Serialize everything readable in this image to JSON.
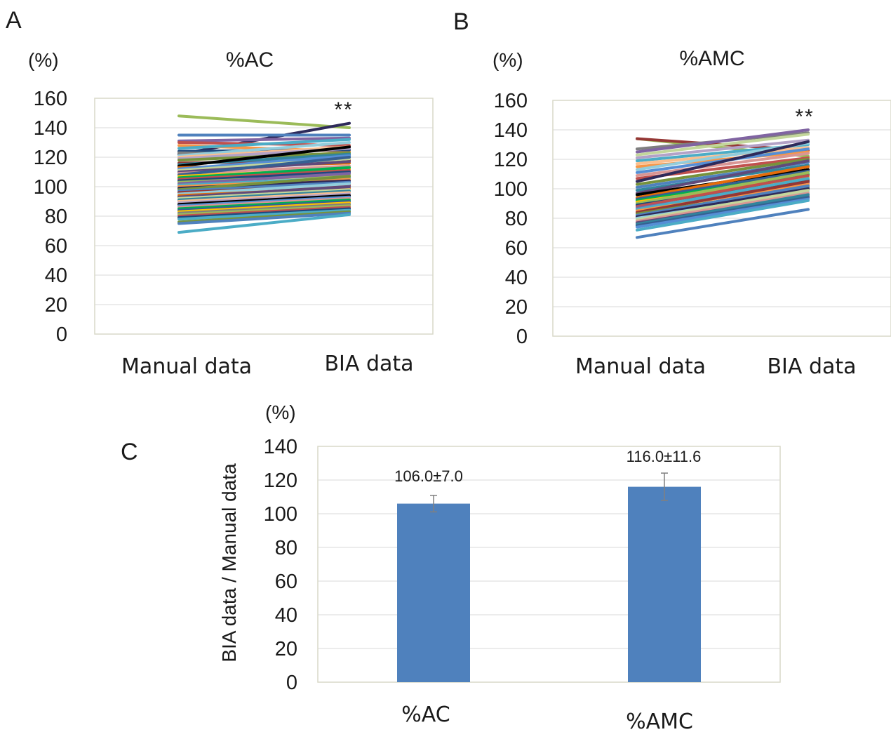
{
  "panels": {
    "A": {
      "letter": "A",
      "unit": "(%)",
      "title": "%AC",
      "significance": "**",
      "categories": [
        "Manual data",
        "BIA data"
      ],
      "y_ticks": [
        "0",
        "20",
        "40",
        "60",
        "80",
        "100",
        "120",
        "140",
        "160"
      ]
    },
    "B": {
      "letter": "B",
      "unit": "(%)",
      "title": "%AMC",
      "significance": "**",
      "categories": [
        "Manual data",
        "BIA data"
      ],
      "y_ticks": [
        "0",
        "20",
        "40",
        "60",
        "80",
        "100",
        "120",
        "140",
        "160"
      ]
    },
    "C": {
      "letter": "C",
      "unit": "(%)",
      "ylabel": "BIA data / Manual data",
      "categories": [
        "%AC",
        "%AMC"
      ],
      "bar_labels": [
        "106.0±7.0",
        "116.0±11.6"
      ],
      "y_ticks": [
        "0",
        "20",
        "40",
        "60",
        "80",
        "100",
        "120",
        "140"
      ]
    }
  },
  "chart_data": [
    {
      "type": "line",
      "title": "%AC",
      "ylabel": "(%)",
      "ylim": [
        0,
        160
      ],
      "grid": true,
      "categories": [
        "Manual data",
        "BIA data"
      ],
      "series": [
        {
          "color": "#9bbb59",
          "values": [
            148,
            140
          ]
        },
        {
          "color": "#2e2a5a",
          "values": [
            122,
            143
          ]
        },
        {
          "color": "#4f81bd",
          "values": [
            135,
            135
          ]
        },
        {
          "color": "#8064a2",
          "values": [
            131,
            133
          ]
        },
        {
          "color": "#c0504d",
          "values": [
            130,
            128
          ]
        },
        {
          "color": "#f79646",
          "values": [
            128,
            124
          ]
        },
        {
          "color": "#4bacc6",
          "values": [
            126,
            132
          ]
        },
        {
          "color": "#1f497d",
          "values": [
            124,
            125
          ]
        },
        {
          "color": "#7f7f7f",
          "values": [
            123,
            121
          ]
        },
        {
          "color": "#92cddc",
          "values": [
            121,
            130
          ]
        },
        {
          "color": "#fabf8f",
          "values": [
            120,
            127
          ]
        },
        {
          "color": "#b3a2c7",
          "values": [
            119,
            126
          ]
        },
        {
          "color": "#76923c",
          "values": [
            118,
            123
          ]
        },
        {
          "color": "#953735",
          "values": [
            116,
            118
          ]
        },
        {
          "color": "#31859c",
          "values": [
            115,
            122
          ]
        },
        {
          "color": "#000000",
          "values": [
            114,
            127
          ]
        },
        {
          "color": "#e46c0a",
          "values": [
            113,
            116
          ]
        },
        {
          "color": "#558ed5",
          "values": [
            112,
            121
          ]
        },
        {
          "color": "#c3d69b",
          "values": [
            111,
            119
          ]
        },
        {
          "color": "#604a7b",
          "values": [
            110,
            117
          ]
        },
        {
          "color": "#d99694",
          "values": [
            109,
            114
          ]
        },
        {
          "color": "#366092",
          "values": [
            108,
            120
          ]
        },
        {
          "color": "#ffc000",
          "values": [
            107,
            112
          ]
        },
        {
          "color": "#00b050",
          "values": [
            106,
            113
          ]
        },
        {
          "color": "#c0504d",
          "values": [
            105,
            111
          ]
        },
        {
          "color": "#1f497d",
          "values": [
            104,
            110
          ]
        },
        {
          "color": "#9bbb59",
          "values": [
            103,
            108
          ]
        },
        {
          "color": "#8064a2",
          "values": [
            102,
            109
          ]
        },
        {
          "color": "#4bacc6",
          "values": [
            101,
            106
          ]
        },
        {
          "color": "#f79646",
          "values": [
            100,
            105
          ]
        },
        {
          "color": "#2e2a5a",
          "values": [
            99,
            104
          ]
        },
        {
          "color": "#76923c",
          "values": [
            98,
            107
          ]
        },
        {
          "color": "#4f81bd",
          "values": [
            97,
            103
          ]
        },
        {
          "color": "#953735",
          "values": [
            96,
            101
          ]
        },
        {
          "color": "#92cddc",
          "values": [
            95,
            102
          ]
        },
        {
          "color": "#e46c0a",
          "values": [
            94,
            99
          ]
        },
        {
          "color": "#604a7b",
          "values": [
            93,
            100
          ]
        },
        {
          "color": "#c3d69b",
          "values": [
            92,
            98
          ]
        },
        {
          "color": "#31859c",
          "values": [
            91,
            97
          ]
        },
        {
          "color": "#fabf8f",
          "values": [
            90,
            96
          ]
        },
        {
          "color": "#b3a2c7",
          "values": [
            89,
            95
          ]
        },
        {
          "color": "#000000",
          "values": [
            88,
            94
          ]
        },
        {
          "color": "#558ed5",
          "values": [
            87,
            93
          ]
        },
        {
          "color": "#d99694",
          "values": [
            86,
            92
          ]
        },
        {
          "color": "#00b050",
          "values": [
            85,
            91
          ]
        },
        {
          "color": "#366092",
          "values": [
            84,
            90
          ]
        },
        {
          "color": "#ffc000",
          "values": [
            83,
            89
          ]
        },
        {
          "color": "#7f7f7f",
          "values": [
            82,
            88
          ]
        },
        {
          "color": "#9bbb59",
          "values": [
            81,
            87
          ]
        },
        {
          "color": "#c0504d",
          "values": [
            80,
            86
          ]
        },
        {
          "color": "#1f497d",
          "values": [
            79,
            85
          ]
        },
        {
          "color": "#4bacc6",
          "values": [
            78,
            84
          ]
        },
        {
          "color": "#76923c",
          "values": [
            76,
            83
          ]
        },
        {
          "color": "#4f81bd",
          "values": [
            75,
            82
          ]
        },
        {
          "color": "#4bacc6",
          "values": [
            69,
            81
          ]
        }
      ]
    },
    {
      "type": "line",
      "title": "%AMC",
      "ylabel": "(%)",
      "ylim": [
        0,
        160
      ],
      "grid": true,
      "categories": [
        "Manual data",
        "BIA data"
      ],
      "series": [
        {
          "color": "#9bbb59",
          "values": [
            134,
            122
          ]
        },
        {
          "color": "#953735",
          "values": [
            134,
            126
          ]
        },
        {
          "color": "#7f7f7f",
          "values": [
            127,
            138
          ]
        },
        {
          "color": "#8064a2",
          "values": [
            125,
            140
          ]
        },
        {
          "color": "#c3d69b",
          "values": [
            123,
            137
          ]
        },
        {
          "color": "#b3a2c7",
          "values": [
            121,
            133
          ]
        },
        {
          "color": "#4bacc6",
          "values": [
            119,
            130
          ]
        },
        {
          "color": "#fabf8f",
          "values": [
            117,
            128
          ]
        },
        {
          "color": "#f79646",
          "values": [
            115,
            125
          ]
        },
        {
          "color": "#92cddc",
          "values": [
            113,
            131
          ]
        },
        {
          "color": "#558ed5",
          "values": [
            111,
            127
          ]
        },
        {
          "color": "#d99694",
          "values": [
            109,
            124
          ]
        },
        {
          "color": "#c0504d",
          "values": [
            107,
            121
          ]
        },
        {
          "color": "#2e2a5a",
          "values": [
            105,
            132
          ]
        },
        {
          "color": "#76923c",
          "values": [
            103,
            120
          ]
        },
        {
          "color": "#4f81bd",
          "values": [
            101,
            118
          ]
        },
        {
          "color": "#31859c",
          "values": [
            99,
            116
          ]
        },
        {
          "color": "#604a7b",
          "values": [
            97,
            119
          ]
        },
        {
          "color": "#000000",
          "values": [
            96,
            113
          ]
        },
        {
          "color": "#e46c0a",
          "values": [
            94,
            115
          ]
        },
        {
          "color": "#366092",
          "values": [
            93,
            112
          ]
        },
        {
          "color": "#00b050",
          "values": [
            92,
            110
          ]
        },
        {
          "color": "#ffc000",
          "values": [
            91,
            108
          ]
        },
        {
          "color": "#9bbb59",
          "values": [
            90,
            111
          ]
        },
        {
          "color": "#1f497d",
          "values": [
            89,
            106
          ]
        },
        {
          "color": "#c0504d",
          "values": [
            88,
            109
          ]
        },
        {
          "color": "#8064a2",
          "values": [
            87,
            104
          ]
        },
        {
          "color": "#4bacc6",
          "values": [
            86,
            107
          ]
        },
        {
          "color": "#f79646",
          "values": [
            85,
            103
          ]
        },
        {
          "color": "#953735",
          "values": [
            84,
            105
          ]
        },
        {
          "color": "#76923c",
          "values": [
            83,
            101
          ]
        },
        {
          "color": "#4f81bd",
          "values": [
            82,
            102
          ]
        },
        {
          "color": "#2e2a5a",
          "values": [
            81,
            100
          ]
        },
        {
          "color": "#92cddc",
          "values": [
            80,
            98
          ]
        },
        {
          "color": "#c3d69b",
          "values": [
            79,
            99
          ]
        },
        {
          "color": "#d99694",
          "values": [
            78,
            97
          ]
        },
        {
          "color": "#604a7b",
          "values": [
            77,
            95
          ]
        },
        {
          "color": "#31859c",
          "values": [
            76,
            96
          ]
        },
        {
          "color": "#366092",
          "values": [
            75,
            94
          ]
        },
        {
          "color": "#558ed5",
          "values": [
            74,
            93
          ]
        },
        {
          "color": "#4bacc6",
          "values": [
            72,
            92
          ]
        },
        {
          "color": "#4f81bd",
          "values": [
            67,
            86
          ]
        }
      ]
    },
    {
      "type": "bar",
      "ylabel": "BIA data / Manual data",
      "ylim": [
        0,
        140
      ],
      "grid": true,
      "categories": [
        "%AC",
        "%AMC"
      ],
      "values": [
        106.0,
        116.0
      ],
      "errors": [
        7.0,
        11.6
      ],
      "color": "#4f81bd"
    }
  ]
}
